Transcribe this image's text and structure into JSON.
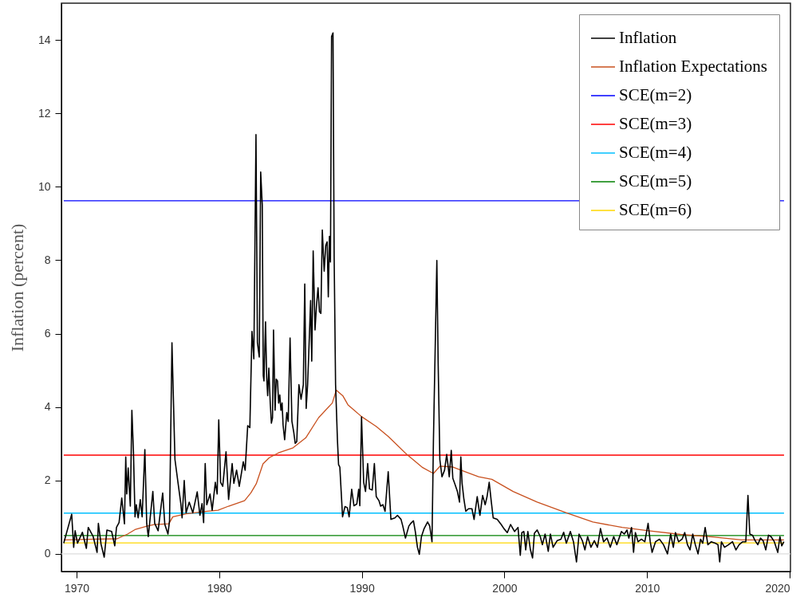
{
  "chart_data": {
    "type": "line",
    "ylabel": "Inflation (percent)",
    "xlim": [
      1968.94,
      2020.05
    ],
    "ylim": [
      -0.48,
      15.0
    ],
    "xticks": [
      1970,
      1980,
      1990,
      2000,
      2010,
      2020
    ],
    "yticks": [
      0,
      2,
      4,
      6,
      8,
      10,
      12,
      14
    ],
    "grid": false,
    "legend": "top right",
    "ref_lines": [
      {
        "axis": "y",
        "value": 0,
        "color": "#dddddd"
      }
    ],
    "series": [
      {
        "name": "Inflation",
        "color": "#000000",
        "x": [
          1969.1,
          1969.66,
          1969.8,
          1969.9,
          1970.07,
          1970.41,
          1970.69,
          1970.82,
          1971.16,
          1971.44,
          1971.53,
          1971.72,
          1971.94,
          1972.13,
          1972.46,
          1972.68,
          1972.8,
          1972.98,
          1973.17,
          1973.36,
          1973.45,
          1973.52,
          1973.62,
          1973.77,
          1973.88,
          1973.99,
          1974.1,
          1974.19,
          1974.32,
          1974.47,
          1974.6,
          1974.79,
          1974.92,
          1975.03,
          1975.35,
          1975.48,
          1975.72,
          1976.04,
          1976.19,
          1976.41,
          1976.52,
          1976.69,
          1976.9,
          1977.12,
          1977.31,
          1977.4,
          1977.55,
          1977.68,
          1977.9,
          1978.15,
          1978.46,
          1978.65,
          1978.8,
          1978.91,
          1979.02,
          1979.13,
          1979.36,
          1979.51,
          1979.73,
          1979.86,
          1979.97,
          1980.1,
          1980.25,
          1980.48,
          1980.66,
          1980.91,
          1981.03,
          1981.22,
          1981.41,
          1981.69,
          1981.82,
          1982.0,
          1982.15,
          1982.3,
          1982.43,
          1982.58,
          1982.68,
          1982.81,
          1982.91,
          1983.02,
          1983.09,
          1983.14,
          1983.25,
          1983.33,
          1983.4,
          1983.48,
          1983.58,
          1983.66,
          1983.74,
          1983.81,
          1983.92,
          1984.0,
          1984.09,
          1984.17,
          1984.25,
          1984.33,
          1984.41,
          1984.48,
          1984.59,
          1984.74,
          1984.84,
          1984.97,
          1985.1,
          1985.23,
          1985.33,
          1985.44,
          1985.59,
          1985.74,
          1985.9,
          1986.0,
          1986.1,
          1986.2,
          1986.33,
          1986.41,
          1986.49,
          1986.59,
          1986.72,
          1986.82,
          1986.93,
          1987.03,
          1987.13,
          1987.23,
          1987.36,
          1987.47,
          1987.57,
          1987.65,
          1987.73,
          1987.8,
          1987.88,
          1987.98,
          1988.06,
          1988.16,
          1988.29,
          1988.37,
          1988.46,
          1988.65,
          1988.82,
          1988.98,
          1989.11,
          1989.29,
          1989.45,
          1989.65,
          1989.78,
          1989.86,
          1989.98,
          1990.13,
          1990.26,
          1990.41,
          1990.54,
          1990.73,
          1990.88,
          1991.01,
          1991.2,
          1991.32,
          1991.48,
          1991.63,
          1991.85,
          1992.04,
          1992.32,
          1992.5,
          1992.75,
          1992.87,
          1993.06,
          1993.3,
          1993.43,
          1993.62,
          1993.75,
          1993.9,
          1994.03,
          1994.18,
          1994.37,
          1994.61,
          1994.76,
          1994.92,
          1995.02,
          1995.13,
          1995.26,
          1995.35,
          1995.47,
          1995.62,
          1995.8,
          1995.95,
          1996.04,
          1996.13,
          1996.27,
          1996.38,
          1996.51,
          1996.7,
          1996.85,
          1996.94,
          1997.03,
          1997.16,
          1997.29,
          1997.48,
          1997.72,
          1997.87,
          1998.09,
          1998.28,
          1998.47,
          1998.65,
          1998.78,
          1998.93,
          1999.08,
          1999.21,
          1999.49,
          1999.77,
          1999.96,
          2000.2,
          2000.43,
          2000.71,
          2000.95,
          2001.11,
          2001.22,
          2001.36,
          2001.49,
          2001.64,
          2001.82,
          2001.97,
          2002.1,
          2002.29,
          2002.51,
          2002.66,
          2002.85,
          2003.07,
          2003.22,
          2003.41,
          2003.69,
          2003.96,
          2004.15,
          2004.34,
          2004.62,
          2004.84,
          2005.05,
          2005.23,
          2005.46,
          2005.64,
          2005.83,
          2006.06,
          2006.3,
          2006.52,
          2006.73,
          2006.95,
          2007.19,
          2007.42,
          2007.66,
          2007.88,
          2008.2,
          2008.4,
          2008.59,
          2008.72,
          2008.91,
          2009.05,
          2009.18,
          2009.37,
          2009.6,
          2009.84,
          2010.07,
          2010.22,
          2010.35,
          2010.59,
          2010.87,
          2011.15,
          2011.43,
          2011.65,
          2011.84,
          2011.99,
          2012.21,
          2012.45,
          2012.64,
          2012.83,
          2013.01,
          2013.2,
          2013.38,
          2013.57,
          2013.75,
          2013.9,
          2014.07,
          2014.26,
          2014.5,
          2014.78,
          2014.97,
          2015.09,
          2015.21,
          2015.43,
          2015.71,
          2015.99,
          2016.23,
          2016.45,
          2016.7,
          2016.92,
          2017.07,
          2017.2,
          2017.39,
          2017.57,
          2017.76,
          2017.95,
          2018.13,
          2018.32,
          2018.51,
          2018.69,
          2018.92,
          2019.16,
          2019.31,
          2019.44,
          2019.59
        ],
        "values": [
          0.29,
          1.08,
          0.18,
          0.63,
          0.29,
          0.59,
          0.15,
          0.72,
          0.48,
          0.04,
          0.83,
          0.26,
          -0.09,
          0.65,
          0.61,
          0.22,
          0.72,
          0.85,
          1.52,
          0.82,
          2.64,
          1.63,
          2.34,
          1.3,
          3.91,
          2.78,
          1.01,
          1.34,
          0.98,
          1.48,
          1.01,
          2.84,
          0.83,
          0.47,
          1.7,
          0.83,
          0.63,
          1.66,
          0.8,
          0.54,
          0.9,
          5.75,
          2.57,
          1.92,
          1.37,
          0.98,
          2.0,
          1.12,
          1.41,
          1.12,
          1.69,
          1.05,
          1.37,
          0.85,
          2.46,
          1.34,
          1.63,
          1.19,
          1.95,
          1.63,
          3.65,
          1.95,
          1.84,
          2.78,
          1.48,
          2.46,
          1.92,
          2.28,
          1.84,
          2.51,
          2.28,
          3.49,
          3.44,
          6.06,
          5.31,
          11.42,
          5.76,
          5.36,
          10.4,
          9.5,
          4.86,
          4.71,
          6.32,
          4.81,
          4.31,
          5.06,
          4.11,
          3.56,
          3.71,
          6.1,
          3.91,
          4.76,
          4.71,
          4.11,
          4.33,
          3.91,
          4.11,
          3.51,
          3.11,
          3.85,
          3.61,
          5.88,
          3.61,
          3.31,
          3.01,
          3.06,
          4.61,
          4.21,
          4.61,
          7.35,
          3.96,
          4.61,
          6.0,
          6.9,
          5.25,
          8.25,
          6.1,
          6.75,
          7.25,
          6.6,
          6.55,
          8.82,
          7.7,
          8.4,
          8.5,
          7.0,
          8.65,
          7.95,
          14.09,
          14.19,
          8.1,
          4.61,
          3.11,
          2.43,
          2.36,
          1.01,
          1.29,
          1.26,
          1.01,
          1.76,
          1.31,
          1.36,
          1.76,
          1.31,
          3.73,
          1.95,
          1.7,
          2.46,
          1.77,
          1.74,
          2.46,
          1.56,
          1.45,
          1.3,
          1.34,
          1.16,
          2.24,
          0.94,
          0.98,
          1.05,
          0.94,
          0.76,
          0.43,
          0.76,
          0.83,
          0.9,
          0.61,
          0.18,
          -0.01,
          0.47,
          0.69,
          0.87,
          0.76,
          0.33,
          3.08,
          5.32,
          7.99,
          5.25,
          2.57,
          2.1,
          2.28,
          2.71,
          2.42,
          2.1,
          2.82,
          2.06,
          1.92,
          1.7,
          1.41,
          2.64,
          1.92,
          1.48,
          1.16,
          1.23,
          1.23,
          0.94,
          1.56,
          1.05,
          1.59,
          1.34,
          1.56,
          1.95,
          1.41,
          0.98,
          0.94,
          0.8,
          0.69,
          0.58,
          0.8,
          0.61,
          0.72,
          -0.04,
          0.58,
          0.61,
          0.11,
          0.61,
          0.11,
          -0.11,
          0.56,
          0.65,
          0.47,
          0.25,
          0.54,
          0.07,
          0.54,
          0.18,
          0.36,
          0.4,
          0.59,
          0.29,
          0.61,
          0.33,
          -0.22,
          0.54,
          0.36,
          0.11,
          0.47,
          0.18,
          0.36,
          0.18,
          0.69,
          0.33,
          0.43,
          0.18,
          0.47,
          0.25,
          0.61,
          0.54,
          0.65,
          0.43,
          0.72,
          0.04,
          0.58,
          0.33,
          0.4,
          0.33,
          0.83,
          0.33,
          0.04,
          0.33,
          0.4,
          0.25,
          0.0,
          0.54,
          0.18,
          0.58,
          0.33,
          0.4,
          0.58,
          0.25,
          0.11,
          0.54,
          0.25,
          0.0,
          0.4,
          0.29,
          0.72,
          0.25,
          0.33,
          0.29,
          0.25,
          -0.22,
          0.33,
          0.18,
          0.25,
          0.33,
          0.11,
          0.25,
          0.33,
          0.33,
          1.59,
          0.54,
          0.51,
          0.36,
          0.25,
          0.43,
          0.36,
          0.11,
          0.51,
          0.47,
          0.33,
          0.04,
          0.47,
          0.22,
          0.33
        ]
      },
      {
        "name": "Inflation Expectations",
        "color": "#c8501e",
        "x": [
          1969.1,
          1971.34,
          1972.83,
          1973.58,
          1974.14,
          1974.98,
          1975.44,
          1976.47,
          1976.75,
          1977.68,
          1979.17,
          1979.92,
          1980.66,
          1981.78,
          1982.22,
          1982.6,
          1983.07,
          1983.51,
          1984.15,
          1985.18,
          1986.07,
          1986.97,
          1987.93,
          1988.21,
          1988.68,
          1989.03,
          1989.98,
          1991.01,
          1991.85,
          1993.15,
          1994.27,
          1995.02,
          1995.49,
          1996.33,
          1997.44,
          1998.19,
          1999.12,
          2000.61,
          2002.29,
          2004.34,
          2006.2,
          2008.25,
          2010.11,
          2012.35,
          2014.59,
          2016.64,
          2019.59
        ],
        "values": [
          0.38,
          0.4,
          0.41,
          0.54,
          0.67,
          0.76,
          0.8,
          0.82,
          1.01,
          1.09,
          1.16,
          1.19,
          1.3,
          1.45,
          1.66,
          1.91,
          2.45,
          2.62,
          2.75,
          2.89,
          3.16,
          3.71,
          4.11,
          4.46,
          4.3,
          4.06,
          3.74,
          3.47,
          3.2,
          2.71,
          2.35,
          2.19,
          2.39,
          2.37,
          2.21,
          2.1,
          2.03,
          1.7,
          1.41,
          1.12,
          0.87,
          0.72,
          0.63,
          0.53,
          0.46,
          0.38,
          0.38
        ]
      },
      {
        "name": "SCE(m=2)",
        "color": "#0000ff",
        "x": [
          1969.1,
          2019.6
        ],
        "values": [
          9.62,
          9.62
        ]
      },
      {
        "name": "SCE(m=3)",
        "color": "#ff0000",
        "x": [
          1969.1,
          2019.6
        ],
        "values": [
          2.69,
          2.69
        ]
      },
      {
        "name": "SCE(m=4)",
        "color": "#00bfff",
        "x": [
          1969.1,
          2019.6
        ],
        "values": [
          1.11,
          1.11
        ]
      },
      {
        "name": "SCE(m=5)",
        "color": "#008000",
        "x": [
          1969.1,
          2019.6
        ],
        "values": [
          0.5,
          0.5
        ]
      },
      {
        "name": "SCE(m=6)",
        "color": "#ffd700",
        "x": [
          1969.1,
          2019.6
        ],
        "values": [
          0.3,
          0.3
        ]
      }
    ]
  }
}
